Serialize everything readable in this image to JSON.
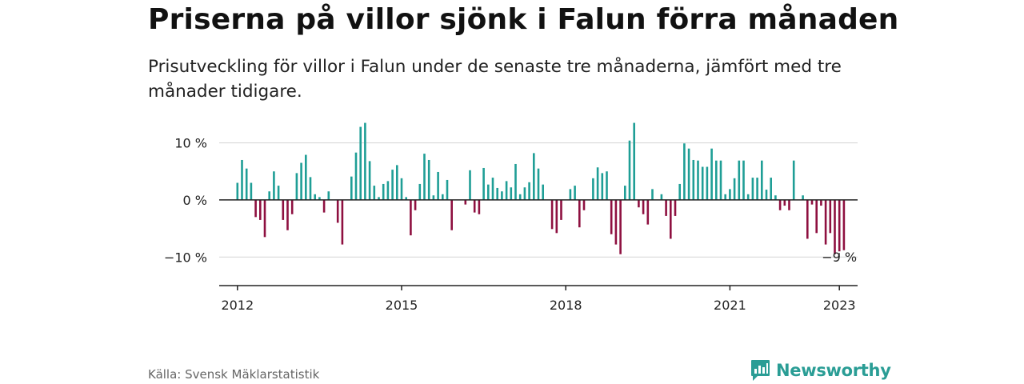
{
  "header": {
    "title": "Priserna på villor sjönk i Falun förra månaden",
    "subtitle": "Prisutveckling för villor i Falun under de senaste tre månaderna, jämfört med tre månader tidigare."
  },
  "footer": {
    "source": "Källa: Svensk Mäklarstatistik",
    "brand": "Newsworthy",
    "brand_icon": "bar-chart-speech-bubble-icon"
  },
  "colors": {
    "positive": "#1f9e96",
    "negative": "#8e1040",
    "grid": "#d9d9d9",
    "axis": "#222222",
    "brand": "#2a9d95"
  },
  "chart_data": {
    "type": "bar",
    "title": "Priserna på villor sjönk i Falun förra månaden",
    "subtitle": "Prisutveckling för villor i Falun under de senaste tre månaderna, jämfört med tre månader tidigare.",
    "xlabel": "",
    "ylabel": "",
    "y_unit": "%",
    "ylim": [
      -15,
      14
    ],
    "xlim": [
      "2011-09",
      "2023-05"
    ],
    "grid": "horizontal",
    "legend": "none",
    "x_ticks": [
      {
        "date": "2012-01",
        "label": "2012"
      },
      {
        "date": "2015-01",
        "label": "2015"
      },
      {
        "date": "2018-01",
        "label": "2018"
      },
      {
        "date": "2021-01",
        "label": "2021"
      },
      {
        "date": "2023-01",
        "label": "2023"
      }
    ],
    "y_ticks": [
      {
        "value": 10,
        "label": "10 %"
      },
      {
        "value": 0,
        "label": "0 %"
      },
      {
        "value": -10,
        "label": "−10 %"
      }
    ],
    "annotation": {
      "date": "2023-01",
      "value": -9,
      "label": "−9 %"
    },
    "start": "2012-01",
    "values": [
      3,
      7,
      5.5,
      3,
      -3,
      -3.5,
      -6.5,
      1.5,
      5,
      2.5,
      -3.5,
      -5.3,
      -2.5,
      4.7,
      6.5,
      7.9,
      4,
      1,
      0.5,
      -2.2,
      1.5,
      0,
      -4,
      -7.8,
      0,
      4.1,
      8.3,
      12.8,
      13.5,
      6.8,
      2.5,
      0.5,
      2.8,
      3.3,
      5.3,
      6.1,
      3.8,
      0.5,
      -6.2,
      -1.8,
      2.8,
      8.1,
      7,
      0.8,
      4.9,
      1,
      3.5,
      -5.3,
      0,
      0,
      -0.8,
      5.2,
      -2.2,
      -2.5,
      5.6,
      2.7,
      3.9,
      2.1,
      1.5,
      3.3,
      2.2,
      6.3,
      1,
      2.2,
      3.1,
      8.2,
      5.5,
      2.7,
      0,
      -5.1,
      -5.8,
      -3.5,
      0,
      1.9,
      2.5,
      -4.8,
      -1.8,
      0,
      3.8,
      5.7,
      4.7,
      5,
      -6,
      -7.8,
      -9.5,
      2.5,
      10.4,
      13.5,
      -1.3,
      -2.5,
      -4.3,
      1.9,
      0,
      1,
      -2.8,
      -6.8,
      -2.8,
      2.8,
      9.9,
      9,
      7,
      6.9,
      5.8,
      5.8,
      9,
      6.9,
      6.9,
      1,
      1.9,
      3.8,
      6.9,
      6.9,
      1,
      3.9,
      3.9,
      6.9,
      1.8,
      3.9,
      0.8,
      -1.8,
      -1,
      -1.8,
      6.9,
      0,
      0.8,
      -6.8,
      -0.8,
      -5.8,
      -1,
      -7.8,
      -5.8,
      -9.5,
      -9,
      -8.8
    ]
  }
}
